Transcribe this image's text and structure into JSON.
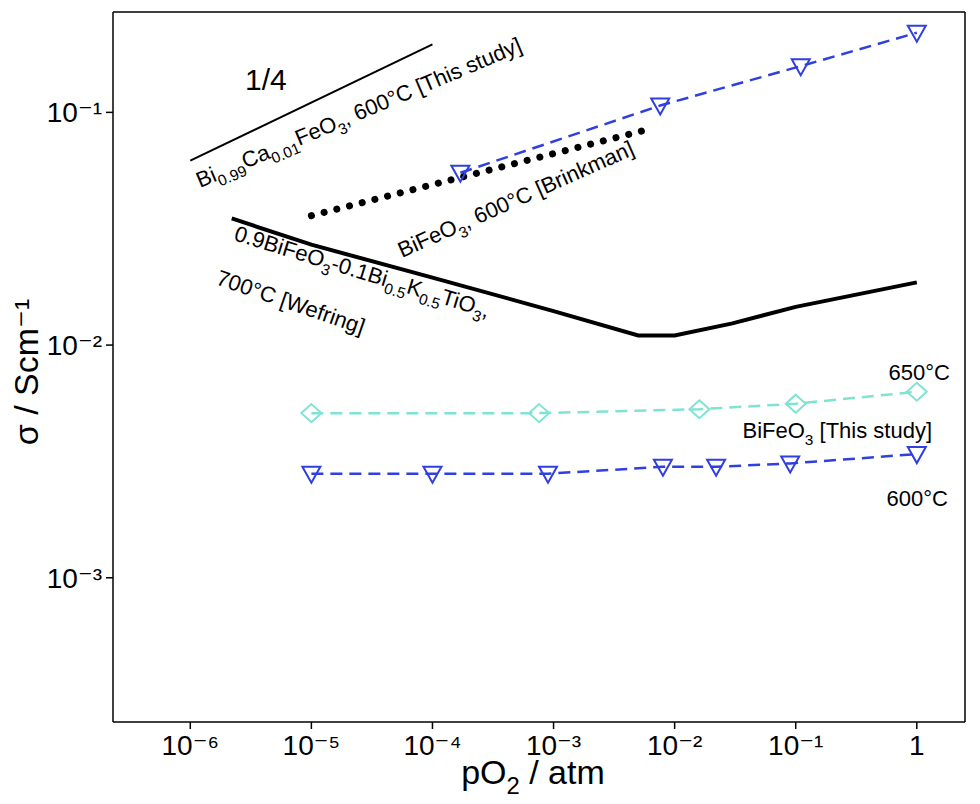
{
  "chart_data": {
    "type": "line",
    "x_label": "pO2 / atm",
    "y_label": "σ / Scm⁻¹",
    "log": true,
    "grid": false,
    "xlim": [
      2.3e-07,
      2.5
    ],
    "xticks": [
      {
        "value": 1e-06,
        "label": "10⁻⁶"
      },
      {
        "value": 1e-05,
        "label": "10⁻⁵"
      },
      {
        "value": 0.0001,
        "label": "10⁻⁴"
      },
      {
        "value": 0.001,
        "label": "10⁻³"
      },
      {
        "value": 0.01,
        "label": "10⁻²"
      },
      {
        "value": 0.1,
        "label": "10⁻¹"
      },
      1
    ],
    "ylim": [
      0.00024,
      0.27
    ],
    "yticks": [
      {
        "value": 0.001,
        "label": "10⁻³"
      },
      {
        "value": 0.01,
        "label": "10⁻²"
      },
      {
        "value": 0.1,
        "label": "10⁻¹"
      }
    ],
    "annotations": [
      "BiFeO3 [This study]"
    ],
    "series": [
      {
        "name": "1/4",
        "color": "#000000",
        "marker": "none",
        "line_style": "solid",
        "x": [
          1e-06,
          0.0001
        ],
        "values": [
          0.062,
          0.196
        ]
      },
      {
        "name": "Bi0.99Ca0.01FeO3, 600°C [This study]",
        "color": "#2f3fe0",
        "marker": "triangle_down",
        "line_style": "dashed",
        "x": [
          0.00017,
          0.0076,
          0.11,
          1
        ],
        "values": [
          0.055,
          0.107,
          0.158,
          0.22
        ]
      },
      {
        "name": "BiFeO3, 600°C [Brinkman]",
        "color": "#000000",
        "marker": "none",
        "line_style": "dotted",
        "x": [
          1e-05,
          0.0063
        ],
        "values": [
          0.036,
          0.085
        ]
      },
      {
        "name": "0.9BiFeO3-0.1Bi0.5K0.5TiO3, 700°C [Wefring]",
        "color": "#000000",
        "marker": "none",
        "line_style": "solid",
        "x": [
          2.2e-06,
          1e-05,
          0.0001,
          0.001,
          0.005,
          0.01,
          0.03,
          0.1,
          1
        ],
        "values": [
          0.035,
          0.027,
          0.0195,
          0.014,
          0.011,
          0.011,
          0.0124,
          0.0146,
          0.0186
        ]
      },
      {
        "name": "650°C",
        "color": "#7fe3d3",
        "marker": "diamond",
        "line_style": "dashed",
        "x": [
          1e-05,
          0.00076,
          0.016,
          0.1,
          1
        ],
        "values": [
          0.0051,
          0.0051,
          0.0053,
          0.0056,
          0.0063
        ]
      },
      {
        "name": "600°C",
        "color": "#2f3fe0",
        "marker": "triangle_down",
        "line_style": "dashed",
        "x": [
          1e-05,
          0.0001,
          0.0009,
          0.008,
          0.022,
          0.09,
          1
        ],
        "values": [
          0.0028,
          0.0028,
          0.0028,
          0.003,
          0.003,
          0.0031,
          0.0034
        ]
      }
    ]
  }
}
